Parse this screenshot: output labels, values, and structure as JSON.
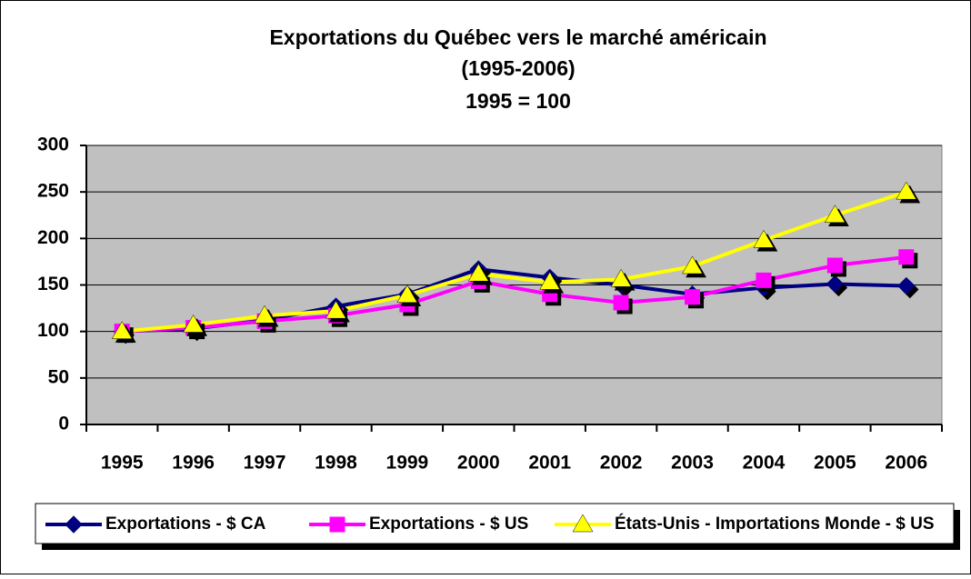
{
  "chart_data": {
    "type": "line",
    "title": "Exportations du Québec vers le marché américain",
    "subtitle": "(1995-2006)",
    "note": "1995 = 100",
    "categories": [
      "1995",
      "1996",
      "1997",
      "1998",
      "1999",
      "2000",
      "2001",
      "2002",
      "2003",
      "2004",
      "2005",
      "2006"
    ],
    "series": [
      {
        "name": "Exportations - $ CA",
        "color": "#000080",
        "marker": "diamond",
        "values": [
          100,
          103,
          112,
          127,
          140,
          167,
          158,
          150,
          140,
          147,
          151,
          149
        ]
      },
      {
        "name": "Exportations - $ US",
        "color": "#ff00ff",
        "marker": "square",
        "values": [
          100,
          104,
          111,
          117,
          129,
          154,
          140,
          131,
          137,
          155,
          171,
          180
        ]
      },
      {
        "name": "États-Unis - Importations Monde - $ US",
        "color": "#ffff00",
        "marker": "triangle",
        "values": [
          100,
          107,
          117,
          122,
          139,
          162,
          153,
          156,
          170,
          198,
          225,
          250
        ]
      }
    ],
    "ylim": [
      0,
      300
    ],
    "yticks": [
      0,
      50,
      100,
      150,
      200,
      250,
      300
    ],
    "grid": true,
    "legend": "bottom"
  }
}
